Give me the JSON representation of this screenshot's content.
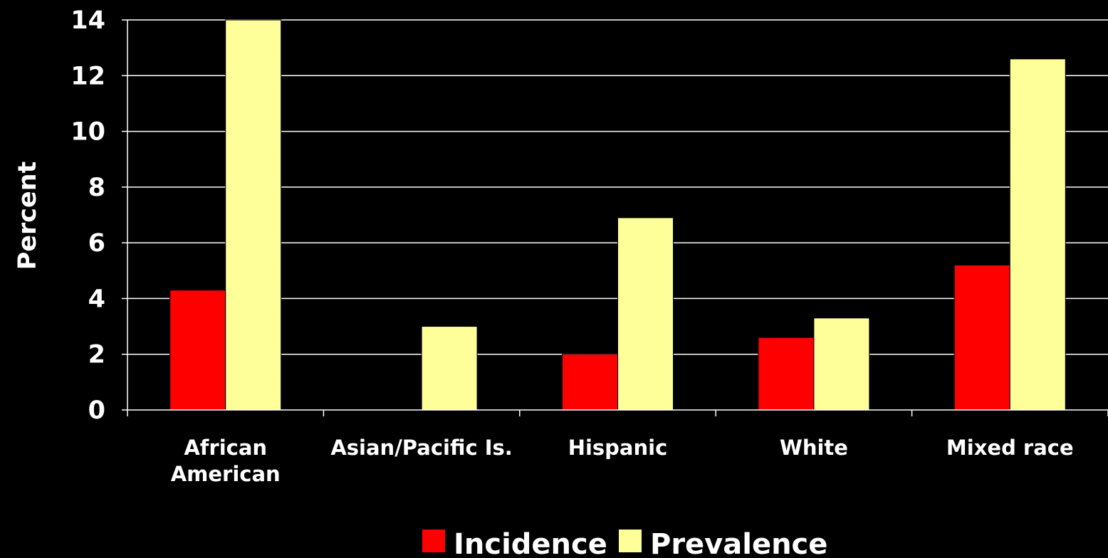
{
  "chart_data": {
    "type": "bar",
    "title": "",
    "xlabel": "",
    "ylabel": "Percent",
    "ylim": [
      0,
      14
    ],
    "yticks": [
      "0",
      "2",
      "4",
      "6",
      "8",
      "10",
      "12",
      "14"
    ],
    "categories": [
      [
        "African",
        "American"
      ],
      [
        "Asian/Pacific Is."
      ],
      [
        "Hispanic"
      ],
      [
        "White"
      ],
      [
        "Mixed race"
      ]
    ],
    "series": [
      {
        "name": "Incidence",
        "color": "#ff0000",
        "values": [
          4.3,
          0,
          2.0,
          2.6,
          5.2
        ]
      },
      {
        "name": "Prevalence",
        "color": "#ffff99",
        "values": [
          14.0,
          3.0,
          6.9,
          3.3,
          12.6
        ]
      }
    ],
    "grid": true,
    "legend_position": "bottom"
  }
}
